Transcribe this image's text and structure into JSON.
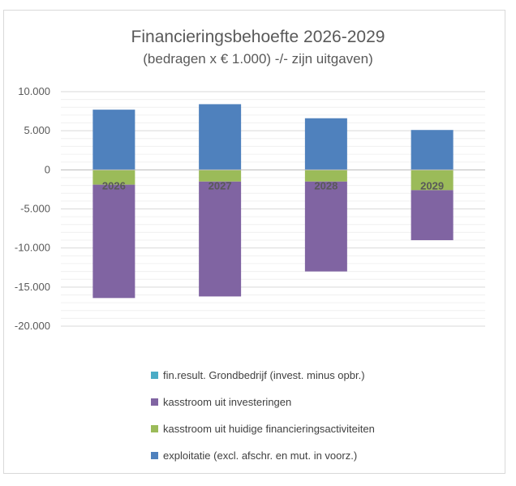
{
  "chart_data": {
    "type": "bar",
    "stacked": true,
    "title": "Financieringsbehoefte 2026-2029",
    "subtitle": "(bedragen x € 1.000) -/- zijn uitgaven)",
    "categories": [
      "2026",
      "2027",
      "2028",
      "2029"
    ],
    "ylim": [
      -20000,
      10000
    ],
    "yticks": [
      10000,
      5000,
      0,
      -5000,
      -10000,
      -15000,
      -20000
    ],
    "ytick_labels": [
      "10.000",
      "5.000",
      "0",
      "-5.000",
      "-10.000",
      "-15.000",
      "-20.000"
    ],
    "grid": true,
    "legend_position": "bottom",
    "series": [
      {
        "name": "exploitatie (excl. afschr. en mut. in voorz.)",
        "color": "#4f81bd",
        "values": [
          7700,
          8400,
          6600,
          5100
        ]
      },
      {
        "name": "kasstroom uit huidige financieringsactiviteiten",
        "color": "#9bbb59",
        "values": [
          -1900,
          -1500,
          -1500,
          -2600
        ]
      },
      {
        "name": "kasstroom uit investeringen",
        "color": "#8064a2",
        "values": [
          -14500,
          -14700,
          -11500,
          -6400
        ]
      },
      {
        "name": "fin.result. Grondbedrijf (invest. minus opbr.)",
        "color": "#4bacc6",
        "values": [
          0,
          0,
          0,
          0
        ]
      }
    ],
    "legend_order": [
      "fin.result. Grondbedrijf (invest. minus opbr.)",
      "kasstroom uit investeringen",
      "kasstroom uit huidige financieringsactiviteiten",
      "exploitatie (excl. afschr. en mut. in voorz.)"
    ]
  }
}
